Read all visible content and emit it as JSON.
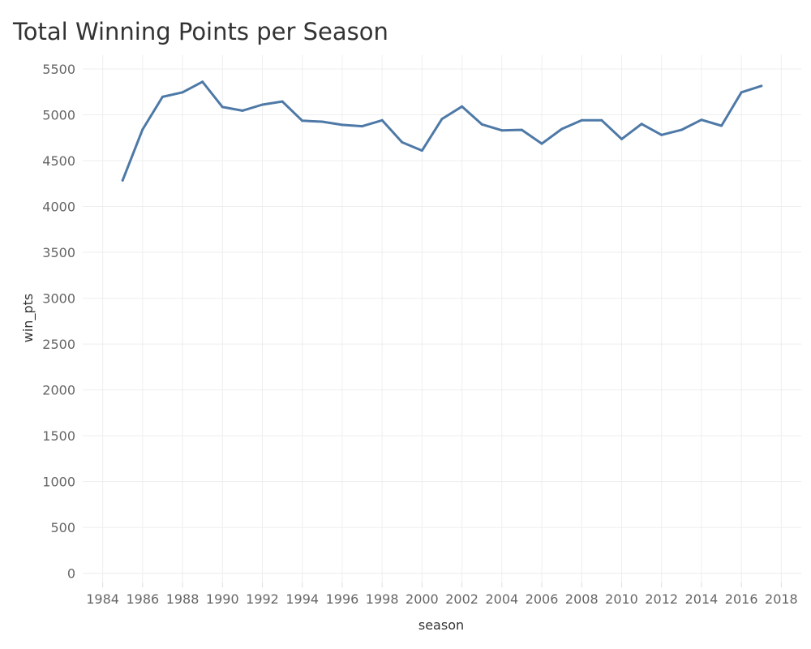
{
  "chart_data": {
    "type": "line",
    "title": "Total Winning Points per Season",
    "xlabel": "season",
    "ylabel": "win_pts",
    "xlim": [
      1983,
      2019
    ],
    "ylim": [
      -100,
      5650
    ],
    "x_ticks": [
      1984,
      1986,
      1988,
      1990,
      1992,
      1994,
      1996,
      1998,
      2000,
      2002,
      2004,
      2006,
      2008,
      2010,
      2012,
      2014,
      2016,
      2018
    ],
    "y_ticks": [
      0,
      500,
      1000,
      1500,
      2000,
      2500,
      3000,
      3500,
      4000,
      4500,
      5000,
      5500
    ],
    "grid": true,
    "series": [
      {
        "color": "#4e79a7",
        "x": [
          1985,
          1986,
          1987,
          1988,
          1989,
          1990,
          1991,
          1992,
          1993,
          1994,
          1995,
          1996,
          1997,
          1998,
          1999,
          2000,
          2001,
          2002,
          2003,
          2004,
          2005,
          2006,
          2007,
          2008,
          2009,
          2010,
          2011,
          2012,
          2013,
          2014,
          2015,
          2016,
          2017
        ],
        "values": [
          4285,
          4840,
          5195,
          5245,
          5360,
          5085,
          5045,
          5110,
          5145,
          4935,
          4925,
          4890,
          4875,
          4940,
          4700,
          4610,
          4955,
          5090,
          4895,
          4830,
          4835,
          4685,
          4845,
          4940,
          4940,
          4735,
          4900,
          4780,
          4835,
          4945,
          4880,
          5245,
          5315
        ]
      }
    ]
  }
}
